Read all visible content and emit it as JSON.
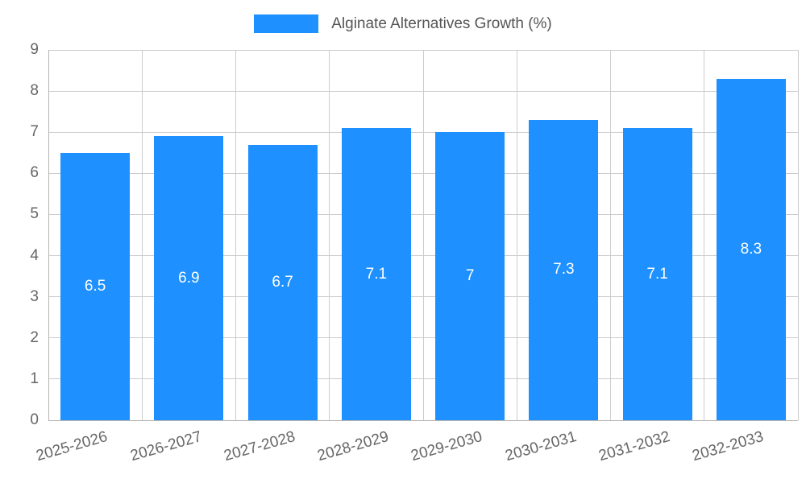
{
  "legend": {
    "label": "Alginate Alternatives Growth (%)",
    "swatch_color": "#1E90FF"
  },
  "chart_data": {
    "type": "bar",
    "title": "Alginate Alternatives Growth (%)",
    "categories": [
      "2025-2026",
      "2026-2027",
      "2027-2028",
      "2028-2029",
      "2029-2030",
      "2030-2031",
      "2031-2032",
      "2032-2033"
    ],
    "values": [
      6.5,
      6.9,
      6.7,
      7.1,
      7,
      7.3,
      7.1,
      8.3
    ],
    "data_labels": [
      "6.5",
      "6.9",
      "6.7",
      "7.1",
      "7",
      "7.3",
      "7.1",
      "8.3"
    ],
    "xlabel": "",
    "ylabel": "",
    "ylim": [
      0,
      9
    ],
    "yticks": [
      0,
      1,
      2,
      3,
      4,
      5,
      6,
      7,
      8,
      9
    ],
    "grid": true,
    "legend_position": "top",
    "bar_color": "#1E90FF",
    "bar_label_color": "#ffffff",
    "axis_text_color": "#666666",
    "gridline_color": "#cccccc"
  }
}
